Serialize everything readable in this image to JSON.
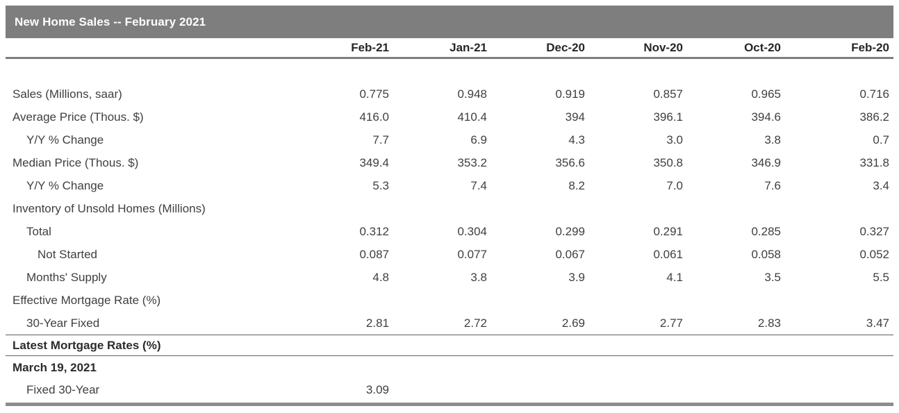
{
  "title": "New Home Sales -- February 2021",
  "columns": [
    "Feb-21",
    "Jan-21",
    "Dec-20",
    "Nov-20",
    "Oct-20",
    "Feb-20"
  ],
  "rows": [
    {
      "label": "Sales (Millions, saar)",
      "indent": 0,
      "values": [
        "0.775",
        "0.948",
        "0.919",
        "0.857",
        "0.965",
        "0.716"
      ]
    },
    {
      "label": "Average Price (Thous. $)",
      "indent": 0,
      "values": [
        "416.0",
        "410.4",
        "394",
        "396.1",
        "394.6",
        "386.2"
      ]
    },
    {
      "label": "Y/Y % Change",
      "indent": 1,
      "values": [
        "7.7",
        "6.9",
        "4.3",
        "3.0",
        "3.8",
        "0.7"
      ]
    },
    {
      "label": "Median Price (Thous. $)",
      "indent": 0,
      "values": [
        "349.4",
        "353.2",
        "356.6",
        "350.8",
        "346.9",
        "331.8"
      ]
    },
    {
      "label": "Y/Y % Change",
      "indent": 1,
      "values": [
        "5.3",
        "7.4",
        "8.2",
        "7.0",
        "7.6",
        "3.4"
      ]
    },
    {
      "label": "Inventory of Unsold Homes (Millions)",
      "indent": 0,
      "values": [
        "",
        "",
        "",
        "",
        "",
        ""
      ]
    },
    {
      "label": "Total",
      "indent": 1,
      "values": [
        "0.312",
        "0.304",
        "0.299",
        "0.291",
        "0.285",
        "0.327"
      ]
    },
    {
      "label": "Not Started",
      "indent": 2,
      "values": [
        "0.087",
        "0.077",
        "0.067",
        "0.061",
        "0.058",
        "0.052"
      ]
    },
    {
      "label": "Months' Supply",
      "indent": 1,
      "values": [
        "4.8",
        "3.8",
        "3.9",
        "4.1",
        "3.5",
        "5.5"
      ]
    },
    {
      "label": "Effective Mortgage Rate (%)",
      "indent": 0,
      "values": [
        "",
        "",
        "",
        "",
        "",
        ""
      ]
    },
    {
      "label": "30-Year Fixed",
      "indent": 1,
      "values": [
        "2.81",
        "2.72",
        "2.69",
        "2.77",
        "2.83",
        "3.47"
      ]
    }
  ],
  "footer": {
    "section_title": "Latest Mortgage Rates (%)",
    "date": "March 19, 2021",
    "rows": [
      {
        "label": "Fixed 30-Year",
        "indent": 1,
        "values": [
          "3.09",
          "",
          "",
          "",
          "",
          ""
        ]
      }
    ]
  },
  "colors": {
    "title_bar_background": "#7e7e7e",
    "title_text": "#ffffff",
    "body_text": "#3f3f3f",
    "header_text": "#262626",
    "header_rule": "#7f7f7f",
    "section_rule": "#5f5f5f",
    "bottom_bar": "#8c8c8c"
  }
}
